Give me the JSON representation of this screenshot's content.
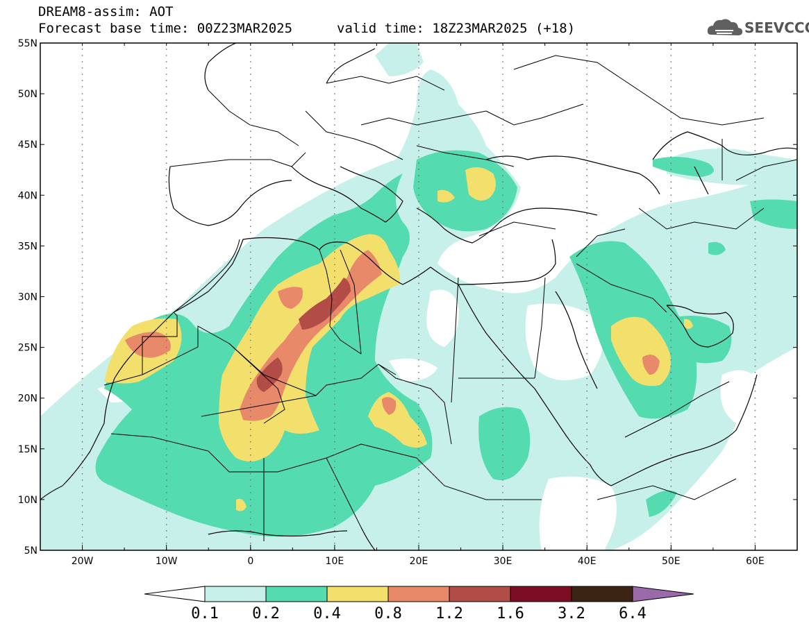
{
  "header": {
    "title_line1": "DREAM8-assim: AOT",
    "title_line2_base": "Forecast base time: 00Z23MAR2025",
    "title_line2_valid": "valid time: 18Z23MAR2025 (+18)"
  },
  "logo": {
    "text": "SEEVCCC",
    "icon": "cloud-icon"
  },
  "map": {
    "lat_ticks": [
      "55N",
      "50N",
      "45N",
      "40N",
      "35N",
      "30N",
      "25N",
      "20N",
      "15N",
      "10N",
      "5N"
    ],
    "lon_ticks": [
      "20W",
      "10W",
      "0",
      "10E",
      "20E",
      "30E",
      "40E",
      "50E",
      "60E"
    ],
    "lat_range": [
      5,
      55
    ],
    "lon_range": [
      -25,
      65
    ]
  },
  "colorbar": {
    "labels": [
      "0.1",
      "0.2",
      "0.4",
      "0.8",
      "1.2",
      "1.6",
      "3.2",
      "6.4"
    ],
    "colors": [
      "#c7f0ea",
      "#55dbb0",
      "#f3e06c",
      "#e8896a",
      "#b24c46",
      "#7d0d22",
      "#3b2414",
      "#9a6aaa"
    ],
    "under_color": "#ffffff",
    "over_color": "#9a6aaa"
  }
}
